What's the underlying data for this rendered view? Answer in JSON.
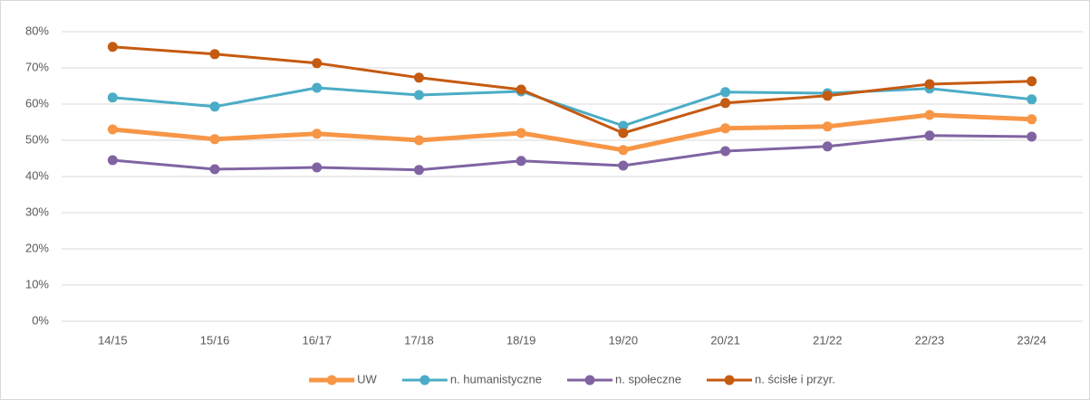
{
  "chart_data": {
    "type": "line",
    "categories": [
      "14/15",
      "15/16",
      "16/17",
      "17/18",
      "18/19",
      "19/20",
      "20/21",
      "21/22",
      "22/23",
      "23/24"
    ],
    "series": [
      {
        "name": "UW",
        "color": "#f79646",
        "values": [
          53,
          50.3,
          51.8,
          50,
          52,
          47.3,
          53.3,
          53.8,
          57,
          55.8
        ]
      },
      {
        "name": "n. humanistyczne",
        "color": "#4bacc6",
        "values": [
          61.8,
          59.3,
          64.5,
          62.5,
          63.5,
          54,
          63.3,
          63,
          64.3,
          61.3
        ]
      },
      {
        "name": "n. społeczne",
        "color": "#8064a2",
        "values": [
          44.5,
          42,
          42.5,
          41.8,
          44.3,
          43,
          47,
          48.3,
          51.3,
          51
        ]
      },
      {
        "name": "n. ścisłe i przyr.",
        "color": "#c55a11",
        "values": [
          75.8,
          73.8,
          71.3,
          67.3,
          64,
          52,
          60.3,
          62.3,
          65.5,
          66.3
        ]
      }
    ],
    "ylim": [
      0,
      80
    ],
    "yticks": [
      {
        "value": 0,
        "label": "0%"
      },
      {
        "value": 10,
        "label": "10%"
      },
      {
        "value": 20,
        "label": "20%"
      },
      {
        "value": 30,
        "label": "30%"
      },
      {
        "value": 40,
        "label": "40%"
      },
      {
        "value": 50,
        "label": "50%"
      },
      {
        "value": 60,
        "label": "60%"
      },
      {
        "value": 70,
        "label": "70%"
      },
      {
        "value": 80,
        "label": "80%"
      }
    ],
    "grid": true,
    "legend": "bottom"
  }
}
